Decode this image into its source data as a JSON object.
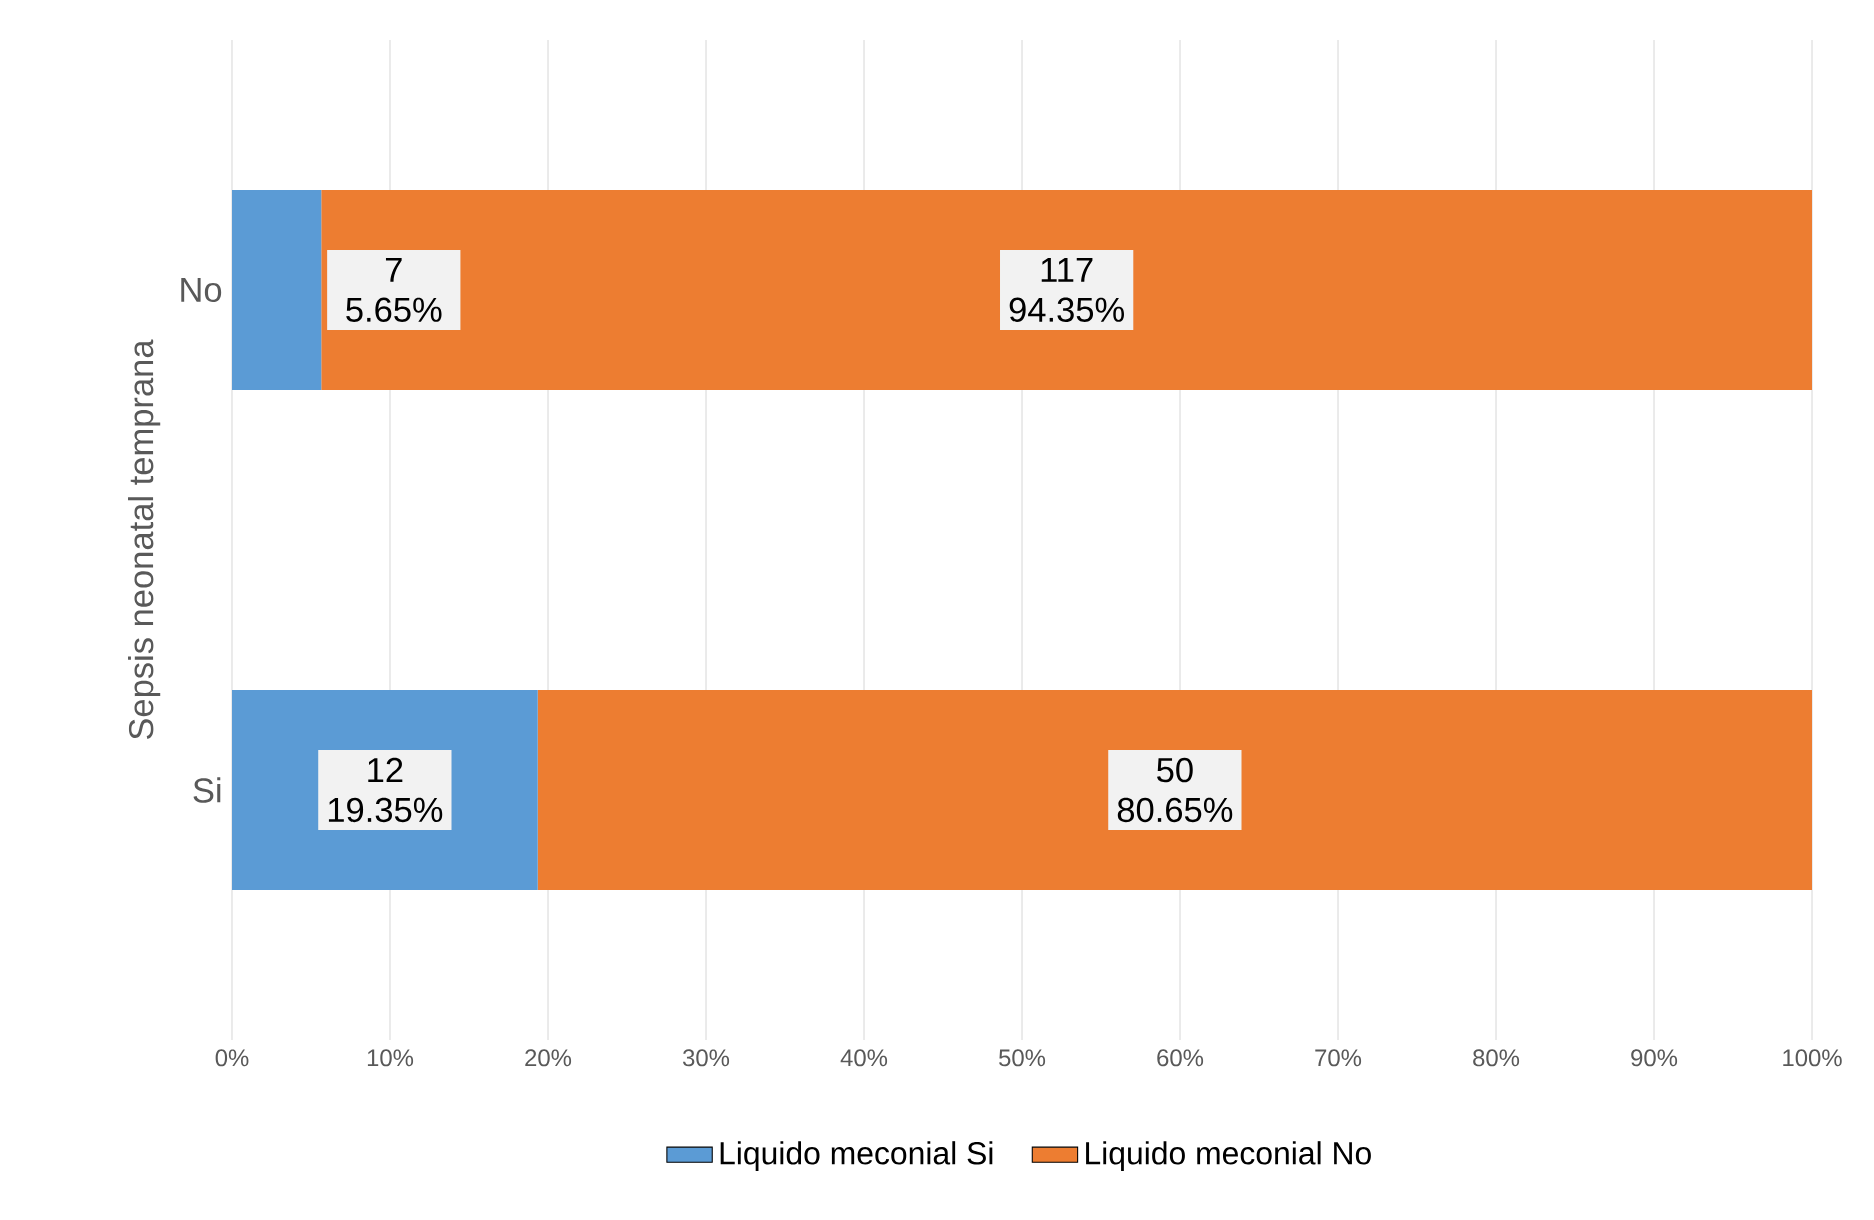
{
  "chart_data": {
    "type": "bar",
    "orientation": "horizontal",
    "stacked": true,
    "ylabel": "Sepsis neonatal temprana",
    "categories": [
      "No",
      "Si"
    ],
    "series": [
      {
        "name": "Liquido meconial Si",
        "color": "#5b9bd5",
        "values": [
          5.65,
          19.35
        ],
        "value_labels": [
          "7 5.65%",
          "12 19.35%"
        ]
      },
      {
        "name": "Liquido meconial No",
        "color": "#ed7d31",
        "values": [
          94.35,
          80.65
        ],
        "value_labels": [
          "117 94.35%",
          "50 80.65%"
        ]
      }
    ],
    "xlim": [
      0,
      100
    ],
    "xticks": [
      {
        "value": 0,
        "label": "0%"
      },
      {
        "value": 10,
        "label": "10%"
      },
      {
        "value": 20,
        "label": "20%"
      },
      {
        "value": 30,
        "label": "30%"
      },
      {
        "value": 40,
        "label": "40%"
      },
      {
        "value": 50,
        "label": "50%"
      },
      {
        "value": 60,
        "label": "60%"
      },
      {
        "value": 70,
        "label": "70%"
      },
      {
        "value": 80,
        "label": "80%"
      },
      {
        "value": 90,
        "label": "90%"
      },
      {
        "value": 100,
        "label": "100%"
      }
    ],
    "grid": "x",
    "legend": "bottom"
  }
}
